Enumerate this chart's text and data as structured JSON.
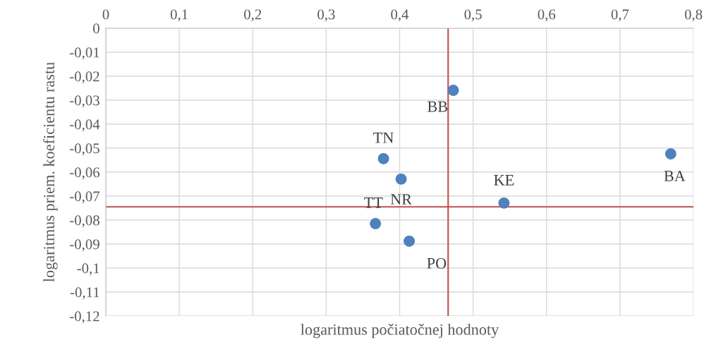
{
  "chart_data": {
    "type": "scatter",
    "xlabel": "logaritmus počiatočnej hodnoty",
    "ylabel": "logaritmus priem. koeficientu rastu",
    "x": [
      0.473,
      0.378,
      0.402,
      0.367,
      0.413,
      0.542,
      0.769
    ],
    "series": [
      {
        "color": "#4f81bd",
        "values": [
          -0.0259,
          -0.0544,
          -0.0629,
          -0.0815,
          -0.0888,
          -0.0729,
          -0.0524
        ]
      }
    ],
    "annotations": [
      {
        "text": "BB",
        "x": 0.473,
        "y": -0.0259
      },
      {
        "text": "TN",
        "x": 0.378,
        "y": -0.0544
      },
      {
        "text": "NR",
        "x": 0.402,
        "y": -0.0629
      },
      {
        "text": "TT",
        "x": 0.367,
        "y": -0.0815
      },
      {
        "text": "PO",
        "x": 0.413,
        "y": -0.0888
      },
      {
        "text": "KE",
        "x": 0.542,
        "y": -0.0729
      },
      {
        "text": "BA",
        "x": 0.769,
        "y": -0.0524
      }
    ],
    "ref_lines": [
      {
        "axis": "x",
        "value": 0.466,
        "color": "#c0504d"
      },
      {
        "axis": "y",
        "value": -0.0745,
        "color": "#c0504d"
      }
    ],
    "xlim": [
      0,
      0.8
    ],
    "xticks": [
      {
        "value": 0,
        "label": "0"
      },
      {
        "value": 0.1,
        "label": "0,1"
      },
      {
        "value": 0.2,
        "label": "0,2"
      },
      {
        "value": 0.3,
        "label": "0,3"
      },
      {
        "value": 0.4,
        "label": "0,4"
      },
      {
        "value": 0.5,
        "label": "0,5"
      },
      {
        "value": 0.6,
        "label": "0,6"
      },
      {
        "value": 0.7,
        "label": "0,7"
      },
      {
        "value": 0.8,
        "label": "0,8"
      }
    ],
    "ylim": [
      -0.12,
      0
    ],
    "yticks": [
      {
        "value": 0,
        "label": "0"
      },
      {
        "value": -0.01,
        "label": "-0,01"
      },
      {
        "value": -0.02,
        "label": "-0,02"
      },
      {
        "value": -0.03,
        "label": "-0,03"
      },
      {
        "value": -0.04,
        "label": "-0,04"
      },
      {
        "value": -0.05,
        "label": "-0,05"
      },
      {
        "value": -0.06,
        "label": "-0,06"
      },
      {
        "value": -0.07,
        "label": "-0,07"
      },
      {
        "value": -0.08,
        "label": "-0,08"
      },
      {
        "value": -0.09,
        "label": "-0,09"
      },
      {
        "value": -0.1,
        "label": "-0,1"
      },
      {
        "value": -0.11,
        "label": "-0,11"
      },
      {
        "value": -0.12,
        "label": "-0,12"
      }
    ],
    "grid": true,
    "marker": "circle"
  }
}
